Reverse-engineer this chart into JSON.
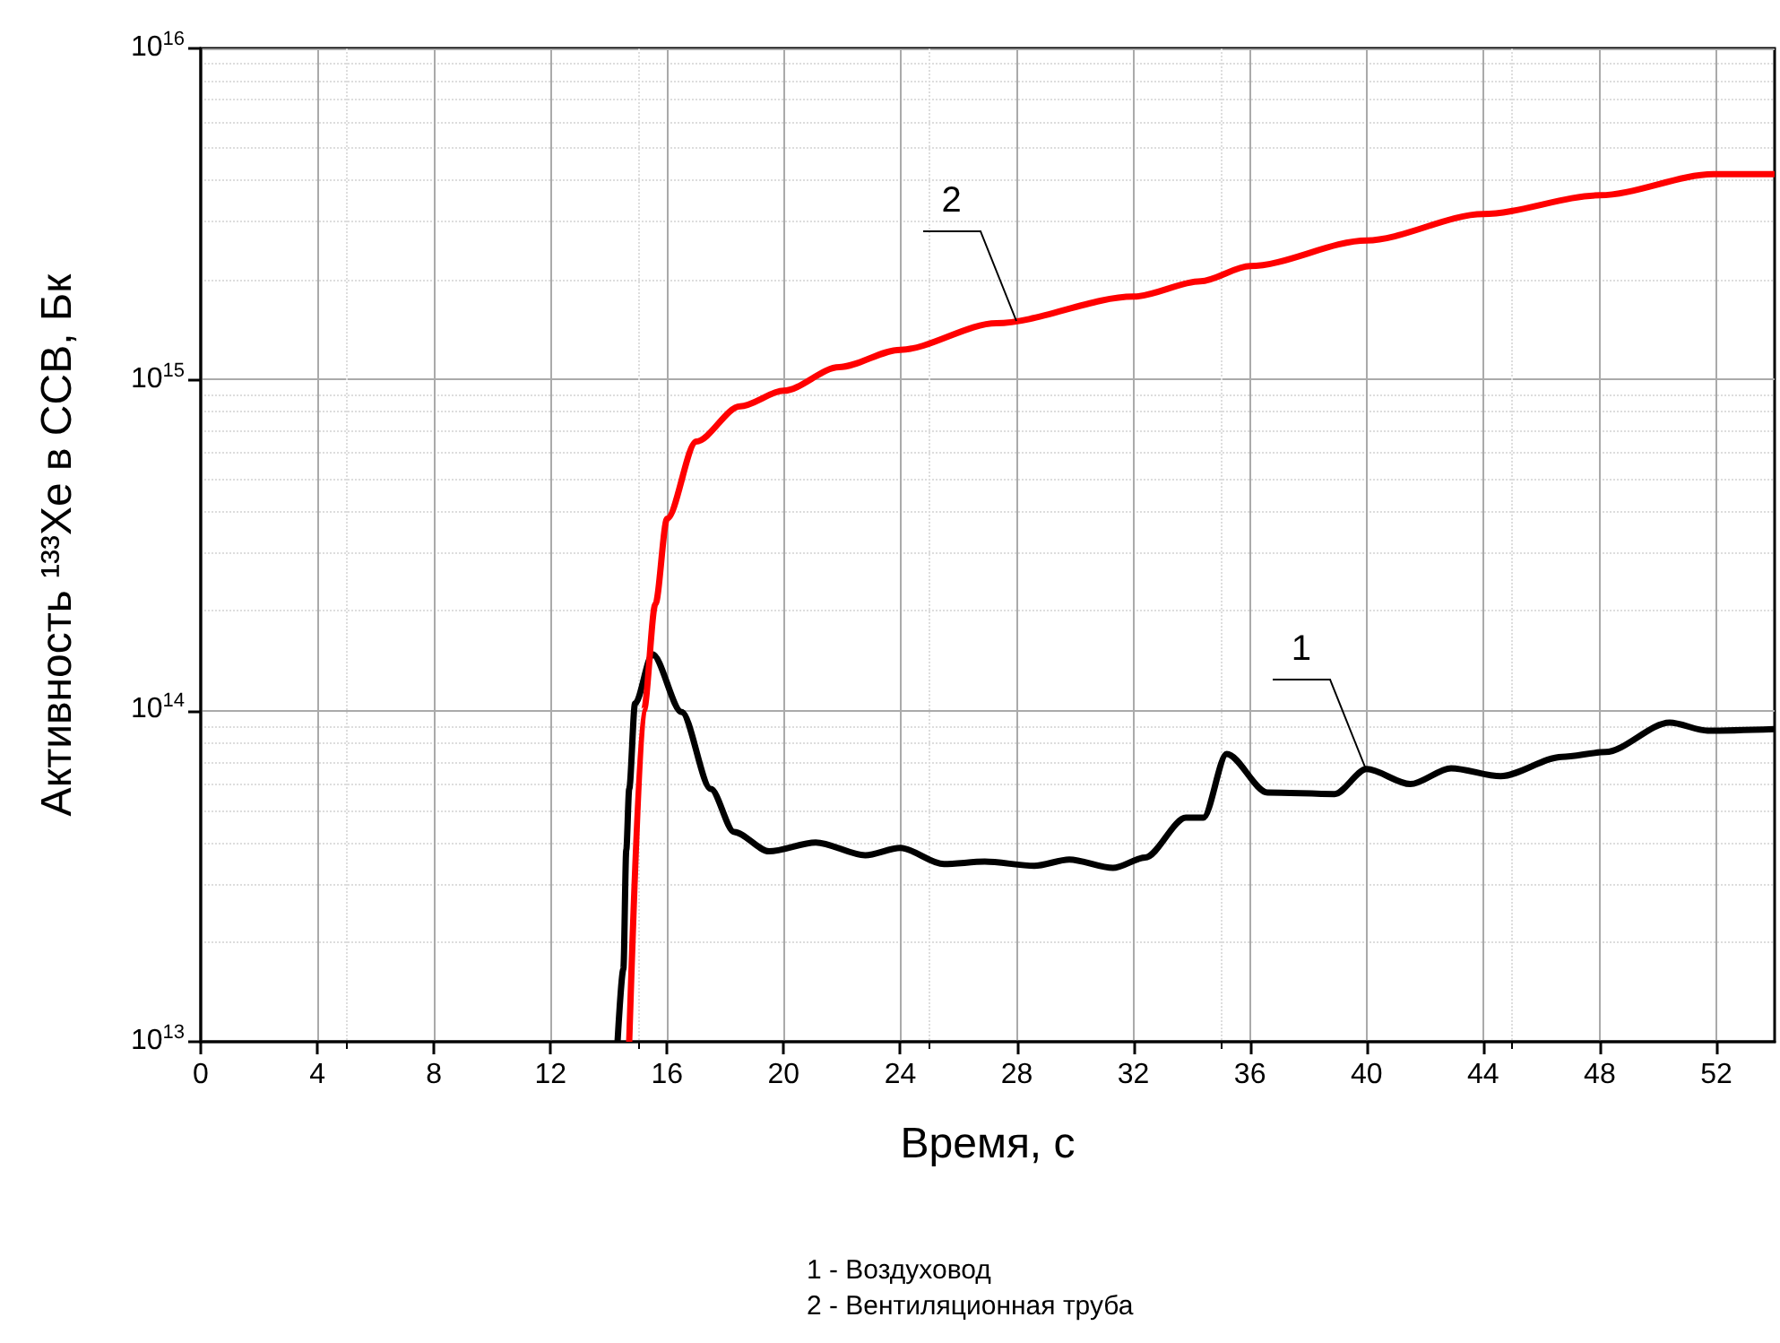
{
  "chart_data": {
    "type": "line",
    "xlabel": "Время, с",
    "ylabel": "Активность ¹³³Xe в ССВ, Бк",
    "xlim": [
      0,
      54
    ],
    "xticks": [
      0,
      4,
      8,
      12,
      16,
      20,
      24,
      28,
      32,
      36,
      40,
      44,
      48,
      52
    ],
    "ylim": [
      10000000000000.0,
      1e+16
    ],
    "yticks": [
      {
        "value": 10000000000000.0,
        "label": "10$^{13}$"
      },
      {
        "value": 100000000000000.0,
        "label": "10$^{14}$"
      },
      {
        "value": 1000000000000000.0,
        "label": "10$^{15}$"
      },
      {
        "value": 1e+16,
        "label": "10$^{16}$"
      }
    ],
    "log": "y",
    "grid": true,
    "marker": "none",
    "line_style": "solid",
    "series": [
      {
        "color": "#000000",
        "x": [
          14.3,
          14.5,
          14.6,
          14.7,
          14.9,
          15.5,
          16.5,
          17.5,
          18.3,
          19.5,
          21.1,
          22.8,
          24.0,
          25.5,
          26.9,
          28.6,
          29.8,
          31.3,
          32.4,
          33.8,
          34.4,
          35.2,
          36.6,
          38.9,
          40.0,
          41.5,
          42.9,
          44.6,
          46.7,
          48.2,
          50.4,
          51.7,
          54
        ],
        "values": [
          10000000000000.0,
          16600000000000.0,
          38000000000000.0,
          58000000000000.0,
          105000000000000.0,
          148000000000000.0,
          99000000000000.0,
          58000000000000.0,
          43000000000000.0,
          37600000000000.0,
          40000000000000.0,
          36600000000000.0,
          38500000000000.0,
          34400000000000.0,
          35000000000000.0,
          34000000000000.0,
          35500000000000.0,
          33500000000000.0,
          36000000000000.0,
          47500000000000.0,
          47500000000000.0,
          74000000000000.0,
          56600000000000.0,
          56000000000000.0,
          66600000000000.0,
          60000000000000.0,
          67000000000000.0,
          63400000000000.0,
          72500000000000.0,
          75000000000000.0,
          92000000000000.0,
          87000000000000.0,
          88000000000000.0
        ]
      },
      {
        "color": "#ff0000",
        "x": [
          14.7,
          15.2,
          15.6,
          16.0,
          17.0,
          18.5,
          20.0,
          21.9,
          24.0,
          27.3,
          32.0,
          34.3,
          36.0,
          40.0,
          44.0,
          48.0,
          51.9,
          54
        ],
        "values": [
          10000000000000.0,
          100000000000000.0,
          210000000000000.0,
          380000000000000.0,
          650000000000000.0,
          830000000000000.0,
          925000000000000.0,
          1090000000000000.0,
          1230000000000000.0,
          1480000000000000.0,
          1780000000000000.0,
          1980000000000000.0,
          2200000000000000.0,
          2630000000000000.0,
          3160000000000000.0,
          3600000000000000.0,
          4170000000000000.0,
          4170000000000000.0
        ]
      }
    ],
    "annotations": [
      {
        "text": "1",
        "x": 40.0,
        "y": 66600000000000.0
      },
      {
        "text": "2",
        "x": 28.0,
        "y": 1500000000000000.0
      },
      "1 - Воздуховод",
      "2 - Вентиляционная труба"
    ]
  }
}
